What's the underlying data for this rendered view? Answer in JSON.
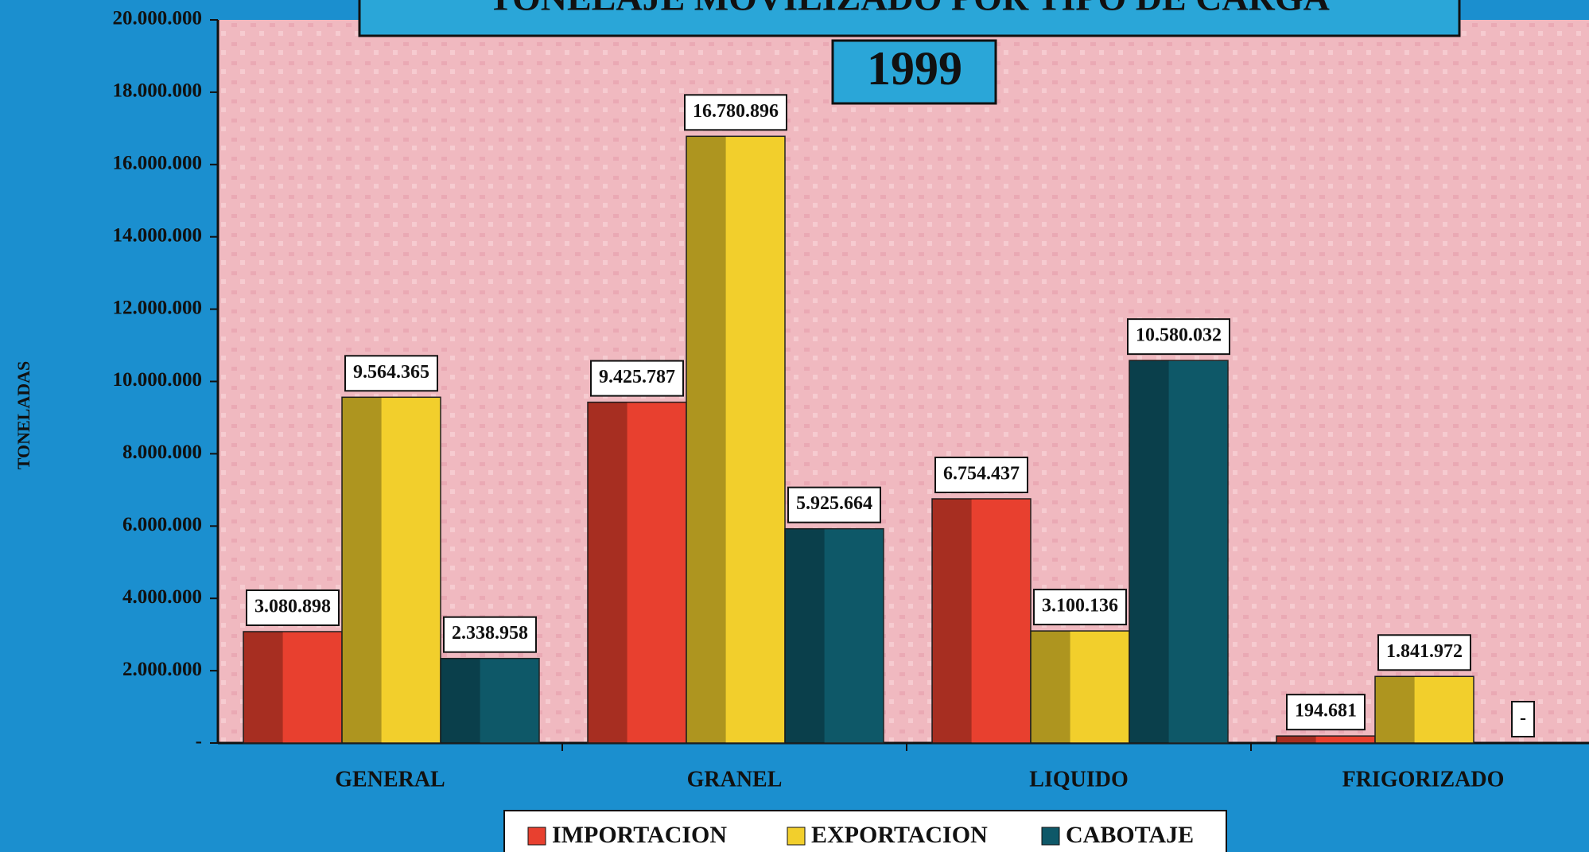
{
  "chart_data": {
    "type": "bar",
    "title": "TONELAJE MOVILIZADO POR TIPO DE CARGA",
    "subtitle": "1999",
    "y_label": "TONELADAS",
    "categories": [
      "GENERAL",
      "GRANEL",
      "LIQUIDO",
      "FRIGORIZADO"
    ],
    "series": [
      {
        "name": "IMPORTACION",
        "color": "#e8402f",
        "values": [
          3080898,
          9425787,
          6754437,
          194681
        ],
        "value_labels": [
          "3.080.898",
          "9.425.787",
          "6.754.437",
          "194.681"
        ]
      },
      {
        "name": "EXPORTACION",
        "color": "#f2cf2c",
        "values": [
          9564365,
          16780896,
          3100136,
          1841972
        ],
        "value_labels": [
          "9.564.365",
          "16.780.896",
          "3.100.136",
          "1.841.972"
        ]
      },
      {
        "name": "CABOTAJE",
        "color": "#0e5868",
        "values": [
          2338958,
          5925664,
          10580032,
          0
        ],
        "value_labels": [
          "2.338.958",
          "5.925.664",
          "10.580.032",
          "-"
        ]
      }
    ],
    "ylim": [
      0,
      20000000
    ],
    "yticks": [
      {
        "value": 0,
        "label": "-"
      },
      {
        "value": 2000000,
        "label": "2.000.000"
      },
      {
        "value": 4000000,
        "label": "4.000.000"
      },
      {
        "value": 6000000,
        "label": "6.000.000"
      },
      {
        "value": 8000000,
        "label": "8.000.000"
      },
      {
        "value": 10000000,
        "label": "10.000.000"
      },
      {
        "value": 12000000,
        "label": "12.000.000"
      },
      {
        "value": 14000000,
        "label": "14.000.000"
      },
      {
        "value": 16000000,
        "label": "16.000.000"
      },
      {
        "value": 18000000,
        "label": "18.000.000"
      },
      {
        "value": 20000000,
        "label": "20.000.000"
      }
    ],
    "grid": false
  }
}
